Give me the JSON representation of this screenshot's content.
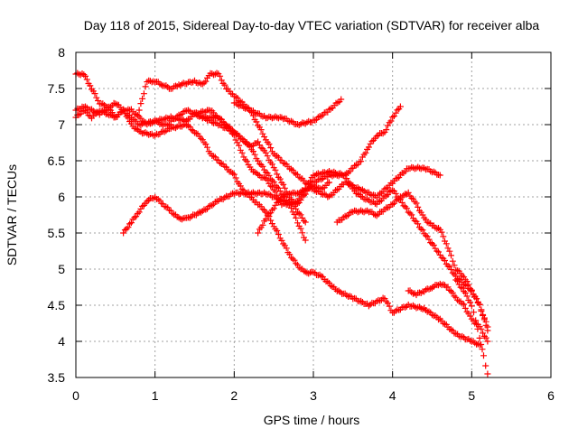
{
  "chart_data": {
    "type": "scatter",
    "title": "Day 118 of 2015, Sidereal Day-to-day VTEC variation (SDTVAR) for receiver alba",
    "xlabel": "GPS time / hours",
    "ylabel": "SDTVAR / TECUs",
    "xlim": [
      0,
      6
    ],
    "ylim": [
      3.5,
      8
    ],
    "xticks": [
      "0",
      "1",
      "2",
      "3",
      "4",
      "5",
      "6"
    ],
    "yticks": [
      "3.5",
      "4",
      "4.5",
      "5",
      "5.5",
      "6",
      "6.5",
      "7",
      "7.5",
      "8"
    ],
    "grid": true,
    "marker": "plus",
    "color": "#ff0000",
    "series": [
      {
        "x": [
          0.0,
          0.1,
          0.3,
          0.5,
          0.7,
          0.8,
          1.0,
          1.2,
          1.4,
          1.5,
          1.6,
          1.8,
          2.0,
          2.2,
          2.3,
          2.5,
          2.7,
          2.9
        ],
        "y": [
          7.2,
          7.25,
          7.15,
          7.3,
          7.1,
          7.0,
          7.05,
          7.1,
          7.05,
          7.15,
          7.1,
          7.0,
          6.9,
          6.7,
          6.5,
          6.2,
          5.9,
          5.4
        ]
      },
      {
        "x": [
          0.0,
          0.1,
          0.2,
          0.3,
          0.4,
          0.5,
          0.6,
          0.7,
          0.8,
          0.9,
          1.0,
          1.1,
          1.2
        ],
        "y": [
          7.7,
          7.7,
          7.5,
          7.3,
          7.25,
          7.1,
          7.2,
          7.2,
          7.1,
          7.0,
          7.05,
          7.0,
          7.0
        ]
      },
      {
        "x": [
          0.8,
          0.9,
          1.0,
          1.1,
          1.2,
          1.3,
          1.5,
          1.6,
          1.7,
          1.8,
          1.9,
          2.0,
          2.2,
          2.4,
          2.6,
          2.8,
          3.0,
          3.2,
          3.35
        ],
        "y": [
          7.2,
          7.6,
          7.6,
          7.55,
          7.5,
          7.55,
          7.6,
          7.55,
          7.7,
          7.7,
          7.5,
          7.4,
          7.2,
          7.1,
          7.1,
          7.0,
          7.05,
          7.2,
          7.35
        ]
      },
      {
        "x": [
          0.6,
          0.7,
          0.8,
          0.9,
          1.0,
          1.1,
          1.2,
          1.3,
          1.4,
          1.6,
          1.8,
          2.0,
          2.2,
          2.4,
          2.6,
          2.8,
          3.0,
          3.2,
          3.4,
          3.5,
          3.6,
          3.7,
          3.8,
          3.9,
          4.0,
          4.1
        ],
        "y": [
          5.5,
          5.65,
          5.8,
          5.95,
          6.0,
          5.9,
          5.8,
          5.7,
          5.7,
          5.8,
          5.95,
          6.05,
          6.05,
          6.05,
          5.95,
          5.9,
          6.2,
          6.3,
          6.3,
          6.4,
          6.5,
          6.7,
          6.85,
          6.9,
          7.1,
          7.25
        ]
      },
      {
        "x": [
          0.0,
          0.1,
          0.2,
          0.3,
          0.4,
          0.5,
          0.6,
          0.7,
          0.8,
          1.0,
          1.2,
          1.4,
          1.5,
          1.6,
          1.7,
          1.8,
          1.9,
          2.0,
          2.1,
          2.2,
          2.3,
          2.4,
          2.5,
          2.6,
          2.7,
          2.8,
          2.9,
          3.0,
          3.1,
          3.3,
          3.5,
          3.7,
          3.9,
          4.0,
          4.2,
          4.4,
          4.6,
          4.8,
          5.0,
          5.1
        ],
        "y": [
          7.1,
          7.2,
          7.1,
          7.2,
          7.15,
          7.1,
          7.2,
          7.0,
          6.9,
          6.85,
          6.95,
          7.0,
          6.9,
          6.8,
          6.6,
          6.5,
          6.4,
          6.3,
          6.1,
          6.0,
          5.9,
          5.8,
          5.6,
          5.4,
          5.2,
          5.05,
          4.95,
          4.95,
          4.9,
          4.7,
          4.6,
          4.5,
          4.6,
          4.4,
          4.5,
          4.45,
          4.3,
          4.1,
          4.0,
          3.95
        ]
      },
      {
        "x": [
          1.2,
          1.4,
          1.6,
          1.8,
          1.9,
          2.0,
          2.1,
          2.2,
          2.3,
          2.4,
          2.5,
          2.6,
          2.7,
          2.8,
          3.0,
          3.2,
          3.4,
          3.5,
          3.6,
          3.8,
          4.0,
          4.2,
          4.4,
          4.6,
          4.8,
          5.0,
          5.1,
          5.2
        ],
        "y": [
          7.05,
          7.2,
          7.1,
          7.1,
          7.0,
          6.85,
          6.6,
          6.4,
          6.3,
          6.25,
          6.1,
          5.9,
          5.9,
          5.95,
          6.3,
          6.35,
          6.3,
          6.1,
          6.0,
          5.9,
          6.1,
          5.8,
          5.5,
          5.2,
          4.9,
          4.7,
          4.5,
          4.2
        ]
      },
      {
        "x": [
          1.5,
          1.7,
          1.8,
          1.9,
          2.0,
          2.1,
          2.2,
          2.3,
          2.4,
          2.5,
          2.6,
          2.7,
          2.8,
          2.9
        ],
        "y": [
          7.15,
          7.2,
          7.1,
          7.0,
          6.9,
          6.8,
          6.7,
          6.75,
          6.6,
          6.4,
          6.2,
          6.0,
          5.8,
          5.65
        ]
      },
      {
        "x": [
          2.0,
          2.2,
          2.3,
          2.4,
          2.5,
          2.6,
          2.8,
          3.0,
          3.2,
          3.4,
          3.6,
          3.8,
          4.0,
          4.2,
          4.4,
          4.6
        ],
        "y": [
          7.3,
          7.2,
          7.0,
          6.8,
          6.6,
          6.5,
          6.3,
          6.1,
          6.0,
          6.2,
          6.1,
          6.0,
          6.2,
          6.4,
          6.4,
          6.3
        ]
      },
      {
        "x": [
          2.3,
          2.4,
          2.5,
          2.6,
          2.7,
          2.8,
          2.9,
          3.0,
          3.1,
          3.2
        ],
        "y": [
          5.5,
          5.7,
          5.85,
          6.0,
          6.05,
          6.05,
          6.1,
          6.15,
          6.1,
          6.2
        ]
      },
      {
        "x": [
          3.3,
          3.5,
          3.7,
          3.8,
          4.0,
          4.1,
          4.2,
          4.3,
          4.4,
          4.5,
          4.6,
          4.7,
          4.8,
          4.9,
          5.0,
          5.1,
          5.2
        ],
        "y": [
          5.65,
          5.8,
          5.8,
          5.75,
          5.9,
          6.0,
          6.05,
          5.9,
          5.7,
          5.6,
          5.55,
          5.3,
          5.0,
          4.9,
          4.7,
          4.5,
          4.15
        ]
      },
      {
        "x": [
          4.2,
          4.3,
          4.4,
          4.5,
          4.6,
          4.7,
          4.8,
          4.9,
          5.0,
          5.1,
          5.2
        ],
        "y": [
          4.7,
          4.65,
          4.7,
          4.75,
          4.8,
          4.75,
          4.6,
          4.5,
          4.3,
          4.2,
          4.0
        ]
      },
      {
        "x": [
          4.8,
          4.9,
          5.0,
          5.05,
          5.1,
          5.15,
          5.2
        ],
        "y": [
          4.85,
          4.7,
          4.5,
          4.3,
          4.05,
          3.8,
          3.55
        ]
      }
    ]
  }
}
